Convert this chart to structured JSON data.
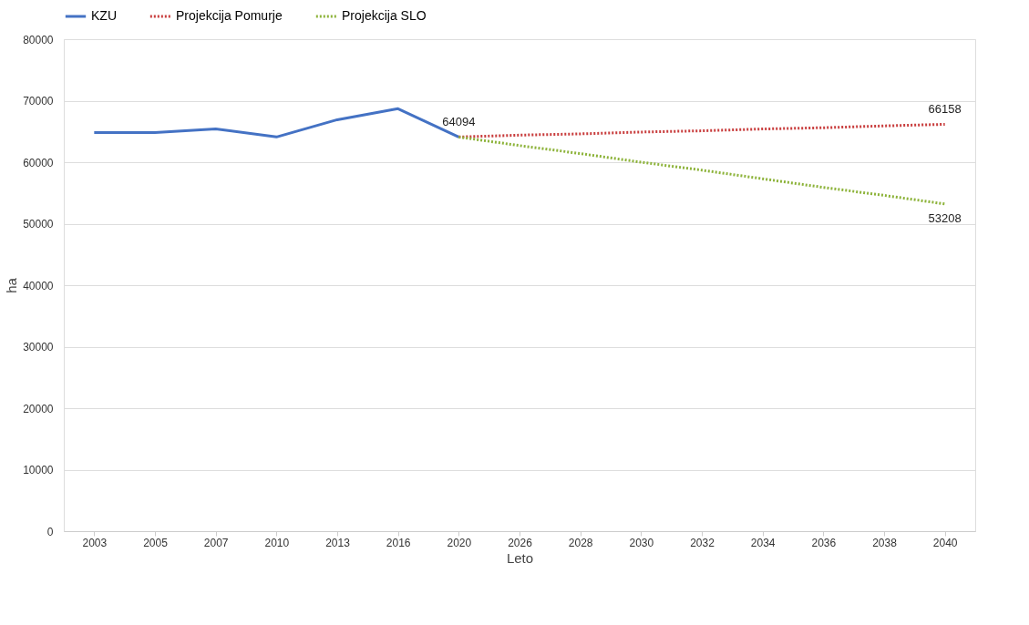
{
  "chart_data": {
    "type": "line",
    "xlabel": "Leto",
    "ylabel": "ha",
    "categories": [
      "2003",
      "2005",
      "2007",
      "2010",
      "2013",
      "2016",
      "2020",
      "2026",
      "2028",
      "2030",
      "2032",
      "2034",
      "2036",
      "2038",
      "2040"
    ],
    "series": [
      {
        "name": "KZU",
        "color": "#4472c4",
        "line_style": "solid",
        "values": [
          64800,
          64800,
          65400,
          64100,
          66900,
          68700,
          64094,
          null,
          null,
          null,
          null,
          null,
          null,
          null,
          null
        ],
        "value_labels": [
          null,
          null,
          null,
          null,
          null,
          null,
          "64094",
          null,
          null,
          null,
          null,
          null,
          null,
          null,
          null
        ]
      },
      {
        "name": "Projekcija Pomurje",
        "color": "#c83c3c",
        "line_style": "dotted",
        "values": [
          null,
          null,
          null,
          null,
          null,
          null,
          64094,
          64400,
          64600,
          64900,
          65100,
          65400,
          65600,
          65900,
          66158
        ],
        "value_labels": [
          null,
          null,
          null,
          null,
          null,
          null,
          null,
          null,
          null,
          null,
          null,
          null,
          null,
          null,
          "66158"
        ]
      },
      {
        "name": "Projekcija SLO",
        "color": "#8db33a",
        "line_style": "dotted",
        "values": [
          null,
          null,
          null,
          null,
          null,
          null,
          64094,
          62700,
          61400,
          60000,
          58700,
          57300,
          55900,
          54600,
          53208
        ],
        "value_labels": [
          null,
          null,
          null,
          null,
          null,
          null,
          null,
          null,
          null,
          null,
          null,
          null,
          null,
          null,
          "53208"
        ]
      }
    ],
    "ylim": [
      0,
      80000
    ],
    "yticks": [
      0,
      10000,
      20000,
      30000,
      40000,
      50000,
      60000,
      70000,
      80000
    ],
    "grid": "y",
    "legend": "top"
  }
}
